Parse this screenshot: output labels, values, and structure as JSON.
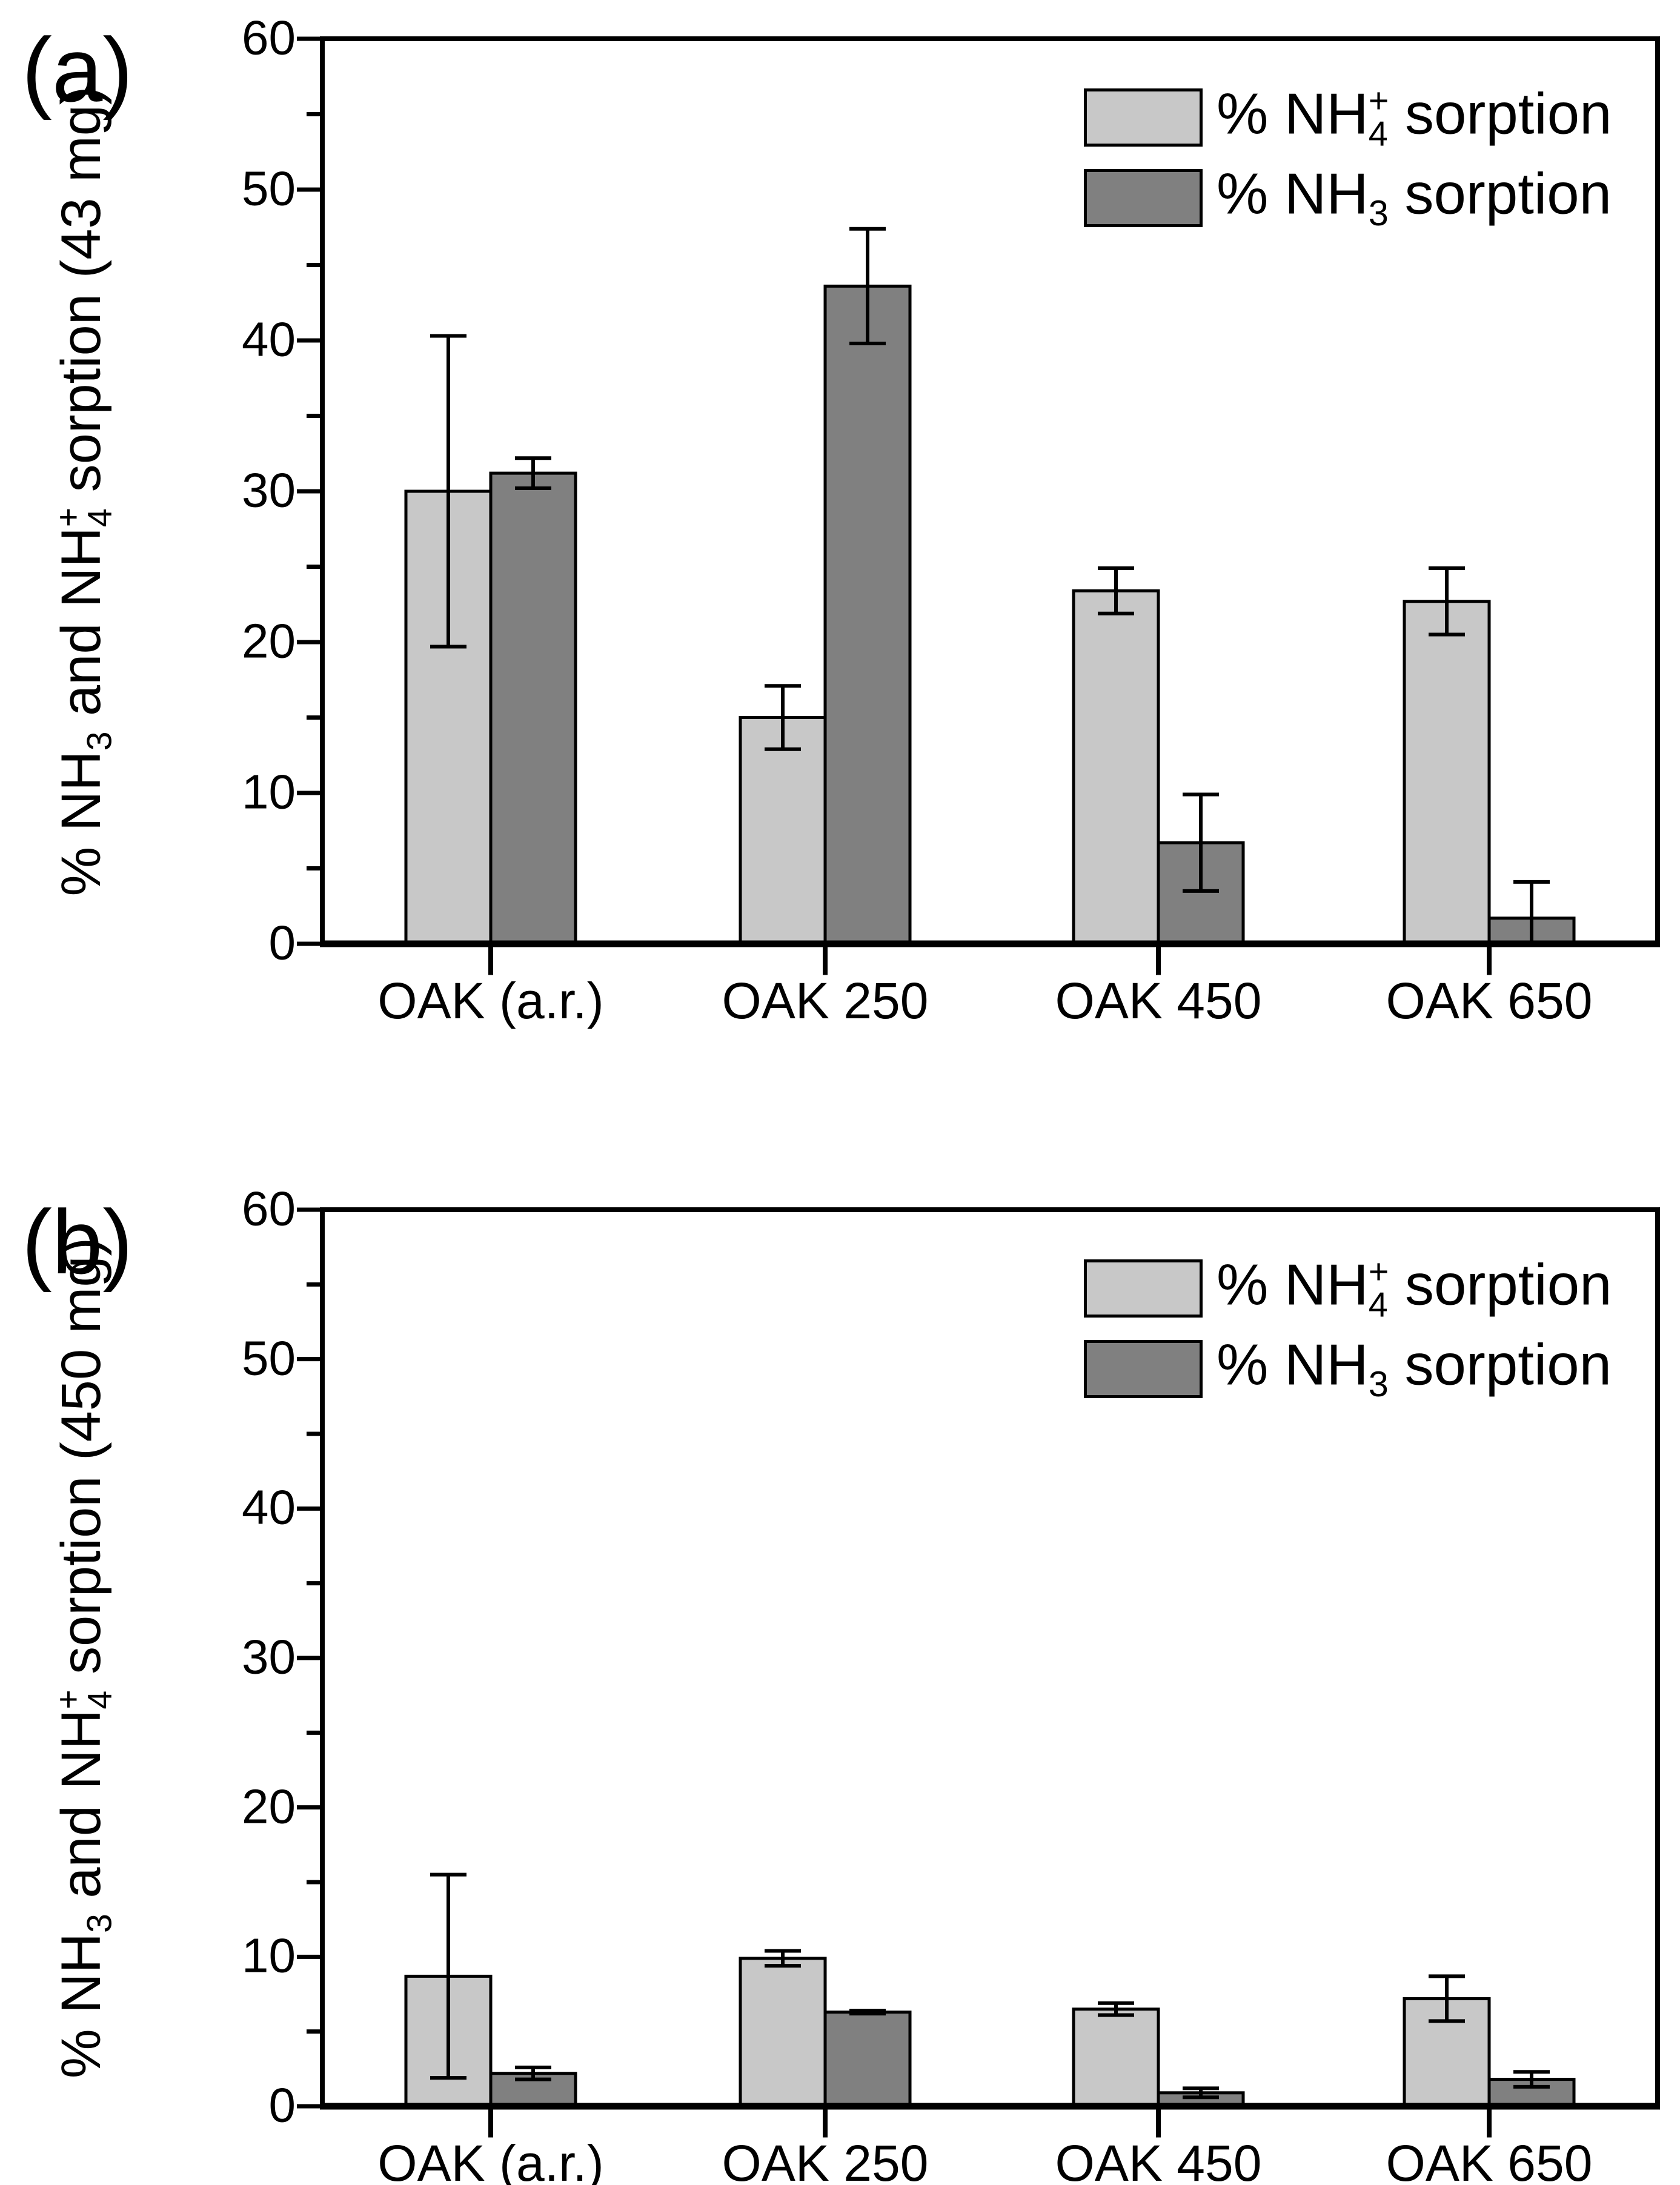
{
  "colors": {
    "background": "#ffffff",
    "axis": "#000000",
    "bar_light": "#c8c8c8",
    "bar_dark": "#808080",
    "error_bar": "#000000",
    "text": "#000000"
  },
  "chart_data": [
    {
      "type": "bar",
      "panel_label": "(a)",
      "ylabel": "% NH3 and NH4+ sorption (43 mg)",
      "ylabel_segments": [
        {
          "t": "% NH"
        },
        {
          "sub": "3"
        },
        {
          "t": " and NH"
        },
        {
          "sub": "4",
          "sup": "+"
        },
        {
          "t": " sorption (43 mg)"
        }
      ],
      "xlabel": "",
      "categories": [
        "OAK (a.r.)",
        "OAK 250",
        "OAK 450",
        "OAK 650"
      ],
      "series": [
        {
          "name": "% NH4+ sorption",
          "color_key": "bar_light",
          "values": [
            30.0,
            15.0,
            23.4,
            22.7
          ],
          "errors": [
            10.3,
            2.1,
            1.5,
            2.2
          ]
        },
        {
          "name": "% NH3 sorption",
          "color_key": "bar_dark",
          "values": [
            31.2,
            43.6,
            6.7,
            1.7
          ],
          "errors": [
            1.0,
            3.8,
            3.2,
            2.4
          ]
        }
      ],
      "ylim": [
        0,
        60
      ],
      "ytick_step": 10,
      "yminor_step": 5,
      "ytick_labels": [
        "0",
        "10",
        "20",
        "30",
        "40",
        "50",
        "60"
      ],
      "grid": false,
      "legend_position": "top-right-inside",
      "legend": [
        {
          "label": "% NH4+ sorption",
          "segments": [
            {
              "t": "% NH"
            },
            {
              "sub": "4",
              "sup": "+"
            },
            {
              "t": " sorption"
            }
          ],
          "swatch_color_key": "bar_light"
        },
        {
          "label": "% NH3 sorption",
          "segments": [
            {
              "t": "% NH"
            },
            {
              "sub": "3"
            },
            {
              "t": " sorption"
            }
          ],
          "swatch_color_key": "bar_dark"
        }
      ]
    },
    {
      "type": "bar",
      "panel_label": "(b)",
      "ylabel": "% NH3 and NH4+ sorption (450 mg)",
      "ylabel_segments": [
        {
          "t": "% NH"
        },
        {
          "sub": "3"
        },
        {
          "t": " and NH"
        },
        {
          "sub": "4",
          "sup": "+"
        },
        {
          "t": " sorption (450 mg)"
        }
      ],
      "xlabel": "",
      "categories": [
        "OAK (a.r.)",
        "OAK 250",
        "OAK 450",
        "OAK 650"
      ],
      "series": [
        {
          "name": "% NH4+ sorption",
          "color_key": "bar_light",
          "values": [
            8.7,
            9.9,
            6.5,
            7.2
          ],
          "errors": [
            6.8,
            0.5,
            0.4,
            1.5
          ]
        },
        {
          "name": "% NH3 sorption",
          "color_key": "bar_dark",
          "values": [
            2.2,
            6.3,
            0.9,
            1.8
          ],
          "errors": [
            0.4,
            0.1,
            0.3,
            0.5
          ]
        }
      ],
      "ylim": [
        0,
        60
      ],
      "ytick_step": 10,
      "yminor_step": 5,
      "ytick_labels": [
        "0",
        "10",
        "20",
        "30",
        "40",
        "50",
        "60"
      ],
      "grid": false,
      "legend_position": "top-right-inside",
      "legend": [
        {
          "label": "% NH4+ sorption",
          "segments": [
            {
              "t": "% NH"
            },
            {
              "sub": "4",
              "sup": "+"
            },
            {
              "t": " sorption"
            }
          ],
          "swatch_color_key": "bar_light"
        },
        {
          "label": "% NH3 sorption",
          "segments": [
            {
              "t": "% NH"
            },
            {
              "sub": "3"
            },
            {
              "t": " sorption"
            }
          ],
          "swatch_color_key": "bar_dark"
        }
      ]
    }
  ]
}
